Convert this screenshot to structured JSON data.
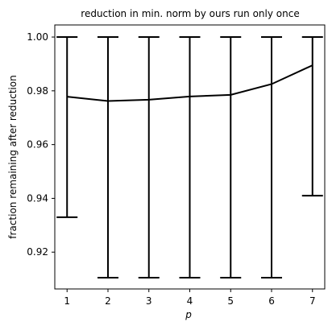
{
  "chart_data": {
    "type": "line",
    "title": "reduction in min. norm by ours run only once",
    "xlabel": "p",
    "ylabel": "fraction remaining after reduction",
    "x": [
      1,
      2,
      3,
      4,
      5,
      6,
      7
    ],
    "xticks": [
      "1",
      "2",
      "3",
      "4",
      "5",
      "6",
      "7"
    ],
    "yticks": [
      "0.92",
      "0.94",
      "0.96",
      "0.98",
      "1.00"
    ],
    "ylim": [
      0.9063,
      1.0045
    ],
    "xlim": [
      0.7,
      7.3
    ],
    "grid": false,
    "series": [
      {
        "values": [
          0.9778,
          0.9762,
          0.9767,
          0.9779,
          0.9785,
          0.9825,
          0.9895
        ],
        "error_low": [
          0.933,
          0.9105,
          0.9105,
          0.9105,
          0.9105,
          0.9105,
          0.941
        ],
        "error_high": [
          1.0,
          1.0,
          1.0,
          1.0,
          1.0,
          1.0,
          1.0
        ],
        "color": "#000000"
      }
    ]
  }
}
